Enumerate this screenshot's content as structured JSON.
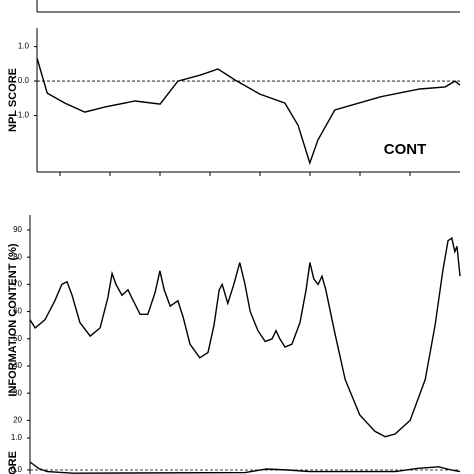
{
  "chart_data": [
    {
      "type": "line",
      "y_label": "NPL SCORE",
      "annotation": "CONT",
      "zero_line": true,
      "color": "#000000",
      "xlim": [
        0,
        100
      ],
      "ylim": [
        -2.64,
        1.54
      ],
      "yticks": [
        {
          "value": 1,
          "label": "1.0"
        },
        {
          "value": 0,
          "label": "0.0"
        },
        {
          "value": -1,
          "label": "-1.0"
        }
      ],
      "x": [
        0,
        2.4,
        6.6,
        11.3,
        16.1,
        23.2,
        29.1,
        33.3,
        38.5,
        42.8,
        46.8,
        52.7,
        58.6,
        61.7,
        64.5,
        66.4,
        70.4,
        81.1,
        90.5,
        96.5,
        98.8,
        100
      ],
      "values": [
        0.67,
        -0.35,
        -0.64,
        -0.9,
        -0.75,
        -0.58,
        -0.67,
        0.0,
        0.17,
        0.35,
        0.03,
        -0.38,
        -0.64,
        -1.28,
        -2.38,
        -1.71,
        -0.84,
        -0.46,
        -0.23,
        -0.17,
        0.0,
        -0.12
      ]
    },
    {
      "type": "line",
      "y_label": "INFORMATION CONTENT (%)",
      "zero_line": false,
      "color": "#000000",
      "xlim": [
        0,
        100
      ],
      "ylim": [
        12.8,
        95.5
      ],
      "yticks": [
        20,
        30,
        40,
        50,
        60,
        70,
        80,
        90
      ],
      "x": [
        0,
        1.2,
        3.5,
        5.8,
        7.4,
        8.6,
        9.8,
        11.6,
        14.0,
        16.3,
        18.1,
        19.1,
        20.0,
        21.4,
        22.8,
        23.7,
        25.6,
        27.4,
        29.1,
        30.2,
        31.2,
        32.6,
        33.5,
        34.4,
        35.6,
        37.2,
        39.5,
        41.4,
        42.8,
        44.0,
        44.7,
        46.0,
        47.4,
        48.8,
        50.0,
        51.2,
        53.0,
        54.7,
        56.3,
        57.2,
        58.1,
        59.3,
        60.9,
        62.8,
        64.2,
        65.1,
        66.0,
        67.0,
        67.9,
        68.8,
        70.9,
        73.3,
        76.7,
        80.2,
        82.6,
        84.9,
        88.4,
        91.9,
        94.2,
        96.0,
        97.2,
        98.1,
        98.8,
        99.3,
        100
      ],
      "values": [
        57,
        54,
        57,
        64,
        70,
        71,
        66,
        56,
        51,
        54,
        65,
        74,
        70,
        66,
        68,
        65,
        59,
        59,
        67,
        75,
        68,
        62,
        63,
        64,
        58,
        48,
        43,
        45,
        55,
        68,
        70,
        63,
        70,
        78,
        70,
        60,
        53,
        49,
        50,
        53,
        50,
        47,
        48,
        56,
        68,
        78,
        72,
        70,
        73,
        68,
        52,
        35,
        22,
        16,
        14,
        15,
        20,
        35,
        55,
        75,
        86,
        87,
        82,
        84,
        73
      ]
    },
    {
      "type": "line",
      "y_label": "ORE",
      "zero_line": true,
      "color": "#000000",
      "xlim": [
        0,
        100
      ],
      "ylim": [
        -0.125,
        1.25
      ],
      "yticks": [
        {
          "value": 1,
          "label": "1.0"
        },
        {
          "value": 0,
          "label": "0.0"
        }
      ],
      "x": [
        0,
        2,
        4,
        10,
        50,
        55,
        60,
        65,
        85,
        90,
        95,
        98,
        100
      ],
      "values": [
        0.25,
        0.05,
        -0.05,
        -0.1,
        -0.08,
        0.03,
        0.0,
        -0.05,
        -0.05,
        0.05,
        0.1,
        0.0,
        -0.05
      ]
    }
  ]
}
